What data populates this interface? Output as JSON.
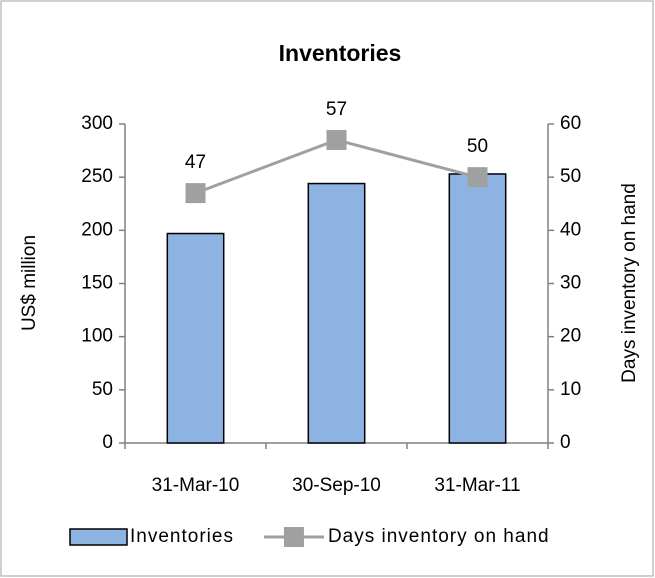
{
  "chart_data": {
    "type": "bar",
    "title": "Inventories",
    "categories": [
      "31-Mar-10",
      "30-Sep-10",
      "31-Mar-11"
    ],
    "series": [
      {
        "name": "Inventories",
        "type": "bar",
        "color": "#8db3e2",
        "values": [
          197,
          244,
          253
        ]
      },
      {
        "name": "Days inventory on hand",
        "type": "line",
        "color": "#a0a0a0",
        "axis": "y2",
        "values": [
          47,
          57,
          50
        ]
      }
    ],
    "ylabel": "US$ million",
    "y2label": "Days inventory on hand",
    "ylim": [
      0,
      300
    ],
    "yticks": [
      0,
      50,
      100,
      150,
      200,
      250,
      300
    ],
    "y2lim": [
      0,
      60
    ],
    "y2ticks": [
      0,
      10,
      20,
      30,
      40,
      50,
      60
    ],
    "grid": false,
    "legend": "bottom"
  }
}
